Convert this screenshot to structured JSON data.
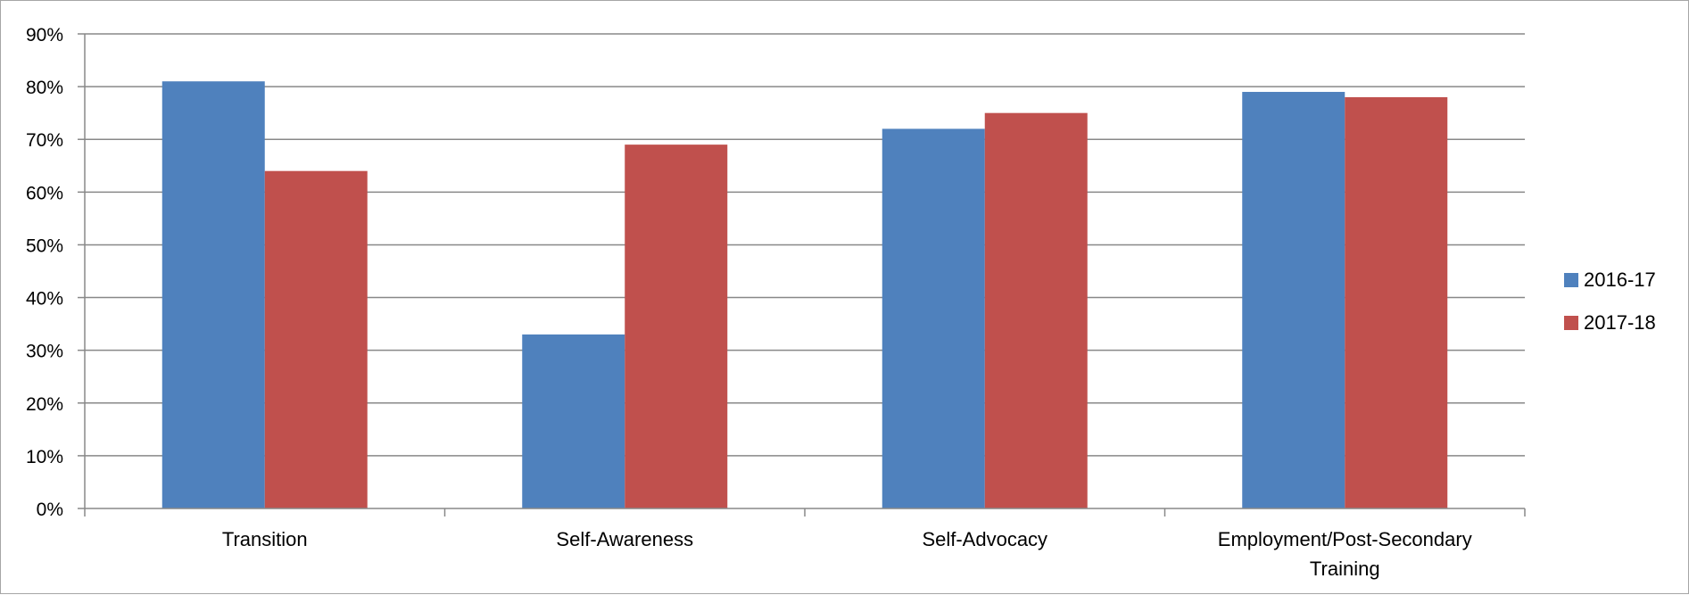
{
  "chart_data": {
    "type": "bar",
    "categories": [
      "Transition",
      "Self-Awareness",
      "Self-Advocacy",
      "Employment/Post-Secondary Training"
    ],
    "category_lines": [
      [
        "Transition"
      ],
      [
        "Self-Awareness"
      ],
      [
        "Self-Advocacy"
      ],
      [
        "Employment/Post-Secondary",
        "Training"
      ]
    ],
    "series": [
      {
        "name": "2016-17",
        "color": "#4f81bd",
        "values": [
          81,
          33,
          72,
          79
        ]
      },
      {
        "name": "2017-18",
        "color": "#c0504d",
        "values": [
          64,
          69,
          75,
          78
        ]
      }
    ],
    "ylim": [
      0,
      90
    ],
    "yticks": [
      0,
      10,
      20,
      30,
      40,
      50,
      60,
      70,
      80,
      90
    ],
    "ytick_labels": [
      "0%",
      "10%",
      "20%",
      "30%",
      "40%",
      "50%",
      "60%",
      "70%",
      "80%",
      "90%"
    ],
    "grid": true,
    "legend_position": "right",
    "title": "",
    "xlabel": "",
    "ylabel": ""
  }
}
